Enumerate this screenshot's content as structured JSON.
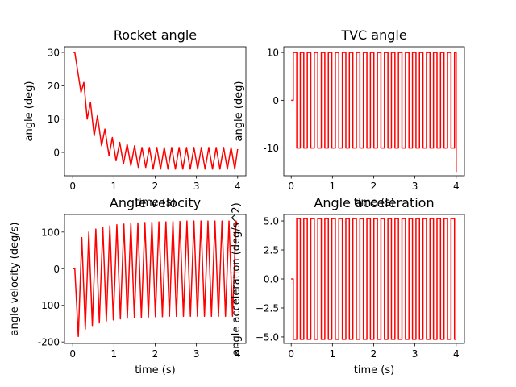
{
  "chart_data": [
    {
      "type": "line",
      "title": "Rocket angle",
      "xlabel": "time (s)",
      "ylabel": "angle (deg)",
      "color": "#ff0000",
      "drawstyle": "default",
      "xlim": [
        -0.2,
        4.2
      ],
      "ylim": [
        -7,
        31.7
      ],
      "xticks": [
        0,
        1,
        2,
        3,
        4
      ],
      "yticks": [
        0,
        10,
        20,
        30
      ],
      "x": [
        0,
        0.05,
        0.2,
        0.27,
        0.35,
        0.43,
        0.52,
        0.6,
        0.7,
        0.78,
        0.88,
        0.96,
        1.05,
        1.14,
        1.23,
        1.32,
        1.41,
        1.5,
        1.59,
        1.68,
        1.77,
        1.86,
        1.95,
        2.04,
        2.13,
        2.22,
        2.31,
        2.4,
        2.49,
        2.58,
        2.67,
        2.76,
        2.85,
        2.94,
        3.03,
        3.12,
        3.21,
        3.3,
        3.39,
        3.48,
        3.57,
        3.66,
        3.75,
        3.84,
        3.93,
        4.0
      ],
      "values": [
        30,
        30,
        18,
        21,
        10,
        15,
        5,
        11,
        2,
        7,
        -1,
        4.5,
        -2.5,
        3,
        -3.5,
        2.5,
        -4,
        2,
        -4.5,
        1.5,
        -4.5,
        1.5,
        -5,
        1.5,
        -5,
        1.5,
        -5,
        1.5,
        -5,
        1.5,
        -5,
        1.5,
        -5,
        1.5,
        -5,
        1.5,
        -5,
        1.5,
        -5,
        1.5,
        -5,
        1.5,
        -5,
        1.5,
        -5,
        1
      ]
    },
    {
      "type": "line",
      "title": "TVC angle",
      "xlabel": "time (s)",
      "ylabel": "angle (deg)",
      "color": "#ff0000",
      "drawstyle": "steps-post",
      "xlim": [
        -0.18,
        4.2
      ],
      "ylim": [
        -15.8,
        11.2
      ],
      "xticks": [
        0,
        1,
        2,
        3,
        4
      ],
      "yticks": [
        -10,
        0,
        10
      ],
      "x": [
        0,
        0.05,
        0.135,
        0.22,
        0.305,
        0.39,
        0.475,
        0.56,
        0.645,
        0.73,
        0.815,
        0.9,
        0.985,
        1.07,
        1.155,
        1.24,
        1.325,
        1.41,
        1.495,
        1.58,
        1.665,
        1.75,
        1.835,
        1.92,
        2.005,
        2.09,
        2.175,
        2.26,
        2.345,
        2.43,
        2.515,
        2.6,
        2.685,
        2.77,
        2.855,
        2.94,
        3.025,
        3.11,
        3.195,
        3.28,
        3.365,
        3.45,
        3.535,
        3.62,
        3.705,
        3.79,
        3.875,
        3.96,
        4.0
      ],
      "values": [
        0,
        10,
        -10,
        10,
        -10,
        10,
        -10,
        10,
        -10,
        10,
        -10,
        10,
        -10,
        10,
        -10,
        10,
        -10,
        10,
        -10,
        10,
        -10,
        10,
        -10,
        10,
        -10,
        10,
        -10,
        10,
        -10,
        10,
        -10,
        10,
        -10,
        10,
        -10,
        10,
        -10,
        10,
        -10,
        10,
        -10,
        10,
        -10,
        10,
        -10,
        10,
        -10,
        10,
        -15
      ]
    },
    {
      "type": "line",
      "title": "Angle velocity",
      "xlabel": "time (s)",
      "ylabel": "angle velocity (deg/s)",
      "color": "#ff0000",
      "drawstyle": "default",
      "xlim": [
        -0.2,
        4.2
      ],
      "ylim": [
        -204,
        148
      ],
      "xticks": [
        0,
        1,
        2,
        3,
        4
      ],
      "yticks": [
        -200,
        -100,
        0,
        100
      ],
      "x": [
        0,
        0.05,
        0.135,
        0.22,
        0.305,
        0.39,
        0.475,
        0.56,
        0.645,
        0.73,
        0.815,
        0.9,
        0.985,
        1.07,
        1.155,
        1.24,
        1.325,
        1.41,
        1.495,
        1.58,
        1.665,
        1.75,
        1.835,
        1.92,
        2.005,
        2.09,
        2.175,
        2.26,
        2.345,
        2.43,
        2.515,
        2.6,
        2.685,
        2.77,
        2.855,
        2.94,
        3.025,
        3.11,
        3.195,
        3.28,
        3.365,
        3.45,
        3.535,
        3.62,
        3.705,
        3.79,
        3.875,
        3.96,
        4.0
      ],
      "values": [
        0,
        0,
        -185,
        85,
        -165,
        100,
        -155,
        108,
        -148,
        113,
        -143,
        117,
        -140,
        120,
        -137,
        122,
        -135,
        124,
        -134,
        125,
        -133,
        126,
        -132,
        127,
        -131,
        128,
        -131,
        128,
        -130,
        129,
        -130,
        129,
        -130,
        130,
        -130,
        130,
        -130,
        130,
        -130,
        130,
        -130,
        130,
        -130,
        130,
        -130,
        130,
        -130,
        130,
        120
      ]
    },
    {
      "type": "line",
      "title": "Angle acceleration",
      "xlabel": "time (s)",
      "ylabel": "angle acceleration (deg/s^2)",
      "color": "#ff0000",
      "drawstyle": "steps-post",
      "xlim": [
        -0.18,
        4.2
      ],
      "ylim": [
        -5.56,
        5.56
      ],
      "xticks": [
        0,
        1,
        2,
        3,
        4
      ],
      "yticks": [
        {
          "value": -5,
          "label": "−5.0"
        },
        {
          "value": -2.5,
          "label": "−2.5"
        },
        {
          "value": 0,
          "label": "0.0"
        },
        {
          "value": 2.5,
          "label": "2.5"
        },
        {
          "value": 5,
          "label": "5.0"
        }
      ],
      "x": [
        0,
        0.05,
        0.135,
        0.22,
        0.305,
        0.39,
        0.475,
        0.56,
        0.645,
        0.73,
        0.815,
        0.9,
        0.985,
        1.07,
        1.155,
        1.24,
        1.325,
        1.41,
        1.495,
        1.58,
        1.665,
        1.75,
        1.835,
        1.92,
        2.005,
        2.09,
        2.175,
        2.26,
        2.345,
        2.43,
        2.515,
        2.6,
        2.685,
        2.77,
        2.855,
        2.94,
        3.025,
        3.11,
        3.195,
        3.28,
        3.365,
        3.45,
        3.535,
        3.62,
        3.705,
        3.79,
        3.875,
        3.96,
        4.0
      ],
      "values": [
        0,
        -5.2,
        5.2,
        -5.2,
        5.2,
        -5.2,
        5.2,
        -5.2,
        5.2,
        -5.2,
        5.2,
        -5.2,
        5.2,
        -5.2,
        5.2,
        -5.2,
        5.2,
        -5.2,
        5.2,
        -5.2,
        5.2,
        -5.2,
        5.2,
        -5.2,
        5.2,
        -5.2,
        5.2,
        -5.2,
        5.2,
        -5.2,
        5.2,
        -5.2,
        5.2,
        -5.2,
        5.2,
        -5.2,
        5.2,
        -5.2,
        5.2,
        -5.2,
        5.2,
        -5.2,
        5.2,
        -5.2,
        5.2,
        -5.2,
        5.2,
        -5.2,
        -5.2
      ]
    }
  ]
}
